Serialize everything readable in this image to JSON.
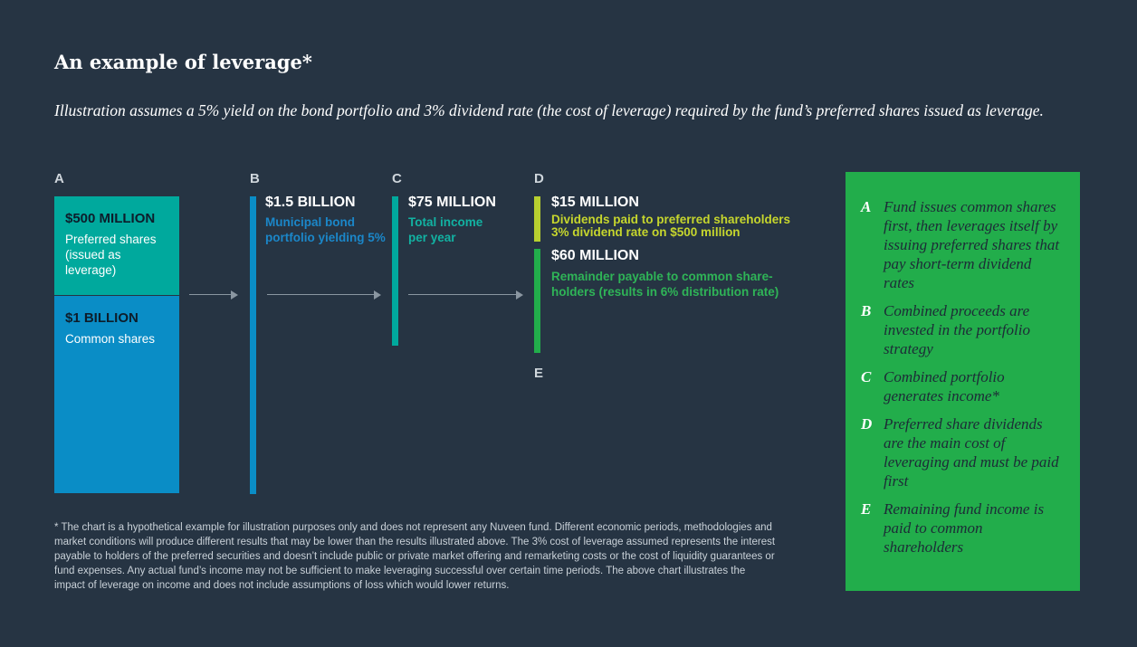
{
  "title": "An example of leverage*",
  "subtitle": "Illustration assumes a 5% yield on the bond portfolio and 3% dividend rate (the cost of leverage) required by the fund’s preferred shares issued as leverage.",
  "colors": {
    "background": "#263443",
    "teal": "#00a99d",
    "blue": "#0a8dc6",
    "lime": "#b7cf2f",
    "green": "#22ad4b",
    "bond_text": "#1b87c9",
    "income_text": "#12b2a2",
    "dividend_text": "#c6d62d",
    "remainder_text": "#2fb457"
  },
  "stages": {
    "a": {
      "letter": "A",
      "preferred": {
        "amount": "$500 MILLION",
        "label": "Preferred shares (issued as leverage)"
      },
      "common": {
        "amount": "$1 BILLION",
        "label": "Common shares"
      }
    },
    "b": {
      "letter": "B",
      "amount": "$1.5 BILLION",
      "label_line1": "Municipal bond",
      "label_line2": "portfolio yielding 5%"
    },
    "c": {
      "letter": "C",
      "amount": "$75 MILLION",
      "label_line1": "Total income",
      "label_line2": "per year"
    },
    "d": {
      "letter": "D",
      "amount": "$15 MILLION",
      "label_line1": "Dividends paid to preferred shareholders",
      "label_line2": "3% dividend rate on $500 million"
    },
    "e": {
      "letter": "E",
      "amount": "$60 MILLION",
      "label_line1": "Remainder payable to common share-",
      "label_line2": "holders (results in 6% distribution rate)"
    }
  },
  "footnote": "*  The chart is a hypothetical example for illustration purposes only and does not represent any Nuveen fund. Different economic periods, methodologies and market conditions will produce different results that may be lower than the results illustrated above. The 3% cost of leverage assumed represents the interest payable to holders of the preferred securities and doesn’t include public or private market offering and remarketing costs or the cost of liquidity guarantees or fund expenses. Any actual fund’s income may not be sufficient to make leveraging successful over certain time periods. The above chart illustrates the impact of leverage on income and does not include assumptions of loss which would lower returns.",
  "legend": [
    {
      "letter": "A",
      "text": "Fund issues common shares first, then leverages itself by issuing preferred shares that pay short-term dividend rates"
    },
    {
      "letter": "B",
      "text": "Combined proceeds are invested in the portfolio strategy"
    },
    {
      "letter": "C",
      "text": "Combined portfolio generates income*"
    },
    {
      "letter": "D",
      "text": "Preferred share dividends are the main cost of leveraging and must be paid first"
    },
    {
      "letter": "E",
      "text": "Remaining fund income is paid to common shareholders"
    }
  ]
}
